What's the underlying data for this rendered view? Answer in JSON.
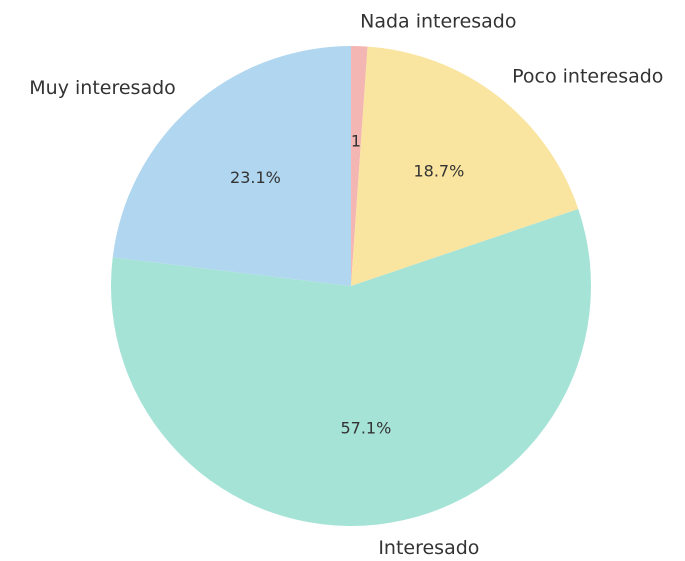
{
  "chart_data": {
    "type": "pie",
    "categories": [
      "Nada interesado",
      "Poco interesado",
      "Interesado",
      "Muy interesado"
    ],
    "values": [
      1.1,
      18.7,
      57.1,
      23.1
    ],
    "value_labels": [
      "1.1%",
      "18.7%",
      "57.1%",
      "23.1%"
    ],
    "colors": [
      "#f4b6b2",
      "#f9e4a0",
      "#a6e3d7",
      "#b0d6f0"
    ]
  }
}
